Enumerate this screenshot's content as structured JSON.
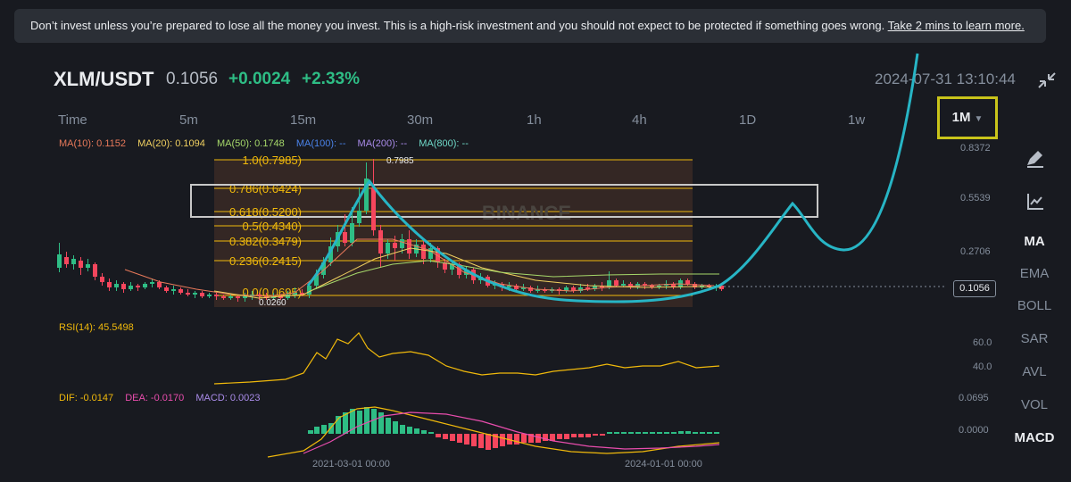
{
  "banner": {
    "text": "Don’t invest unless you’re prepared to lose all the money you invest. This is a high-risk investment and you should not expect to be protected if something goes wrong.",
    "link": "Take 2 mins to learn more."
  },
  "ticker": {
    "pair": "XLM/USDT",
    "price": "0.1056",
    "change": "+0.0024",
    "change_pct": "+2.33%",
    "datetime": "2024-07-31 13:10:44"
  },
  "timeframes": [
    "Time",
    "5m",
    "15m",
    "30m",
    "1h",
    "4h",
    "1D",
    "1w"
  ],
  "selected_timeframe": "1M",
  "ma_legend": [
    {
      "label": "MA(10): 0.1152",
      "color": "#e8795a"
    },
    {
      "label": "MA(20): 0.1094",
      "color": "#f0d060"
    },
    {
      "label": "MA(50): 0.1748",
      "color": "#a6d86a"
    },
    {
      "label": "MA(100): --",
      "color": "#4a82e8"
    },
    {
      "label": "MA(200): --",
      "color": "#a98be8"
    },
    {
      "label": "MA(800): --",
      "color": "#6fd9c8"
    }
  ],
  "price_axis": [
    "0.8372",
    "0.5539",
    "0.2706"
  ],
  "last_price": "0.1056",
  "fib_levels": [
    "1.0(0.7985)",
    "0.786(0.6424)",
    "0.618(0.5200)",
    "0.5(0.4340)",
    "0.382(0.3479)",
    "0.236(0.2415)",
    "0.0(0.0695)"
  ],
  "high_label": "0.7985",
  "low_label": "0.0260",
  "watermark": "BINANCE",
  "rsi": {
    "label": "RSI(14): 45.5498",
    "axis": [
      "60.0",
      "40.0"
    ]
  },
  "macd": {
    "legend": [
      {
        "label": "DIF: -0.0147",
        "color": "#f0b90b"
      },
      {
        "label": "DEA: -0.0170",
        "color": "#e84dad"
      },
      {
        "label": "MACD: 0.0023",
        "color": "#a98be8"
      }
    ],
    "axis": [
      "0.0695",
      "0.0000"
    ]
  },
  "x_axis": [
    "2021-03-01 00:00",
    "2024-01-01 00:00"
  ],
  "indicators": [
    "MA",
    "EMA",
    "BOLL",
    "SAR",
    "AVL",
    "VOL",
    "MACD"
  ],
  "active_indicators": [
    "MA",
    "MACD"
  ],
  "colors": {
    "up": "#2ebd85",
    "down": "#f6465d",
    "fib": "#f0b90b",
    "projection": "#27b5c5",
    "highlight": "#c9c41a"
  }
}
